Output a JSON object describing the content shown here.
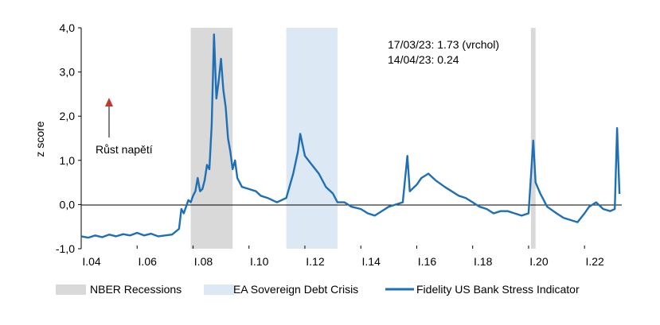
{
  "chart_data": {
    "type": "line",
    "title": "",
    "xlabel": "",
    "ylabel": "z score",
    "ylim": [
      -1.0,
      4.0
    ],
    "xlim": [
      "2004-01",
      "2023-05"
    ],
    "y_ticks": [
      "-1,0",
      "0,0",
      "1,0",
      "2,0",
      "3,0",
      "4,0"
    ],
    "x_ticks": [
      "I.04",
      "I.06",
      "I.08",
      "I.10",
      "I.12",
      "I.14",
      "I.16",
      "I.18",
      "I.20",
      "I.22"
    ],
    "grid": false,
    "legend_position": "bottom",
    "annotations": {
      "line1": "17/03/23:  1.73  (vrchol)",
      "line2": "14/04/23:  0.24",
      "arrow_label": "Růst  napětí"
    },
    "shaded_periods": [
      {
        "name": "NBER Recessions",
        "color": "#d9d9d9",
        "ranges": [
          [
            "2007-12",
            "2009-06"
          ],
          [
            "2020-02",
            "2020-04"
          ]
        ]
      },
      {
        "name": "EA Sovereign Debt Crisis",
        "color": "#dce9f5",
        "ranges": [
          [
            "2011-05",
            "2013-03"
          ]
        ]
      }
    ],
    "series": [
      {
        "name": "Fidelity US Bank Stress Indicator",
        "color": "#1f6fb4",
        "points": [
          [
            "2004-01",
            -0.72
          ],
          [
            "2004-04",
            -0.75
          ],
          [
            "2004-07",
            -0.7
          ],
          [
            "2004-10",
            -0.74
          ],
          [
            "2005-01",
            -0.68
          ],
          [
            "2005-04",
            -0.72
          ],
          [
            "2005-07",
            -0.67
          ],
          [
            "2005-10",
            -0.7
          ],
          [
            "2006-01",
            -0.64
          ],
          [
            "2006-04",
            -0.7
          ],
          [
            "2006-07",
            -0.66
          ],
          [
            "2006-10",
            -0.72
          ],
          [
            "2007-01",
            -0.7
          ],
          [
            "2007-04",
            -0.68
          ],
          [
            "2007-07",
            -0.55
          ],
          [
            "2007-08",
            -0.1
          ],
          [
            "2007-09",
            -0.2
          ],
          [
            "2007-10",
            -0.05
          ],
          [
            "2007-11",
            0.1
          ],
          [
            "2007-12",
            0.05
          ],
          [
            "2008-01",
            0.2
          ],
          [
            "2008-02",
            0.3
          ],
          [
            "2008-03",
            0.6
          ],
          [
            "2008-04",
            0.3
          ],
          [
            "2008-05",
            0.35
          ],
          [
            "2008-06",
            0.55
          ],
          [
            "2008-07",
            0.9
          ],
          [
            "2008-08",
            0.8
          ],
          [
            "2008-09",
            1.8
          ],
          [
            "2008-10",
            3.85
          ],
          [
            "2008-11",
            2.4
          ],
          [
            "2008-12",
            2.8
          ],
          [
            "2009-01",
            3.3
          ],
          [
            "2009-02",
            2.6
          ],
          [
            "2009-03",
            2.2
          ],
          [
            "2009-04",
            1.5
          ],
          [
            "2009-05",
            1.2
          ],
          [
            "2009-06",
            0.8
          ],
          [
            "2009-07",
            1.0
          ],
          [
            "2009-08",
            0.6
          ],
          [
            "2009-09",
            0.5
          ],
          [
            "2009-10",
            0.4
          ],
          [
            "2010-01",
            0.35
          ],
          [
            "2010-04",
            0.3
          ],
          [
            "2010-06",
            0.2
          ],
          [
            "2010-09",
            0.15
          ],
          [
            "2011-01",
            0.05
          ],
          [
            "2011-05",
            0.15
          ],
          [
            "2011-08",
            0.7
          ],
          [
            "2011-10",
            1.2
          ],
          [
            "2011-11",
            1.6
          ],
          [
            "2012-01",
            1.1
          ],
          [
            "2012-04",
            0.9
          ],
          [
            "2012-07",
            0.7
          ],
          [
            "2012-10",
            0.4
          ],
          [
            "2013-01",
            0.25
          ],
          [
            "2013-03",
            0.05
          ],
          [
            "2013-06",
            0.05
          ],
          [
            "2013-09",
            -0.05
          ],
          [
            "2014-01",
            -0.1
          ],
          [
            "2014-04",
            -0.2
          ],
          [
            "2014-07",
            -0.25
          ],
          [
            "2014-10",
            -0.15
          ],
          [
            "2015-01",
            -0.05
          ],
          [
            "2015-04",
            0.0
          ],
          [
            "2015-07",
            0.05
          ],
          [
            "2015-09",
            1.1
          ],
          [
            "2015-10",
            0.3
          ],
          [
            "2016-01",
            0.45
          ],
          [
            "2016-03",
            0.6
          ],
          [
            "2016-06",
            0.7
          ],
          [
            "2016-09",
            0.55
          ],
          [
            "2017-01",
            0.4
          ],
          [
            "2017-04",
            0.3
          ],
          [
            "2017-07",
            0.2
          ],
          [
            "2017-10",
            0.15
          ],
          [
            "2018-01",
            0.05
          ],
          [
            "2018-04",
            -0.05
          ],
          [
            "2018-07",
            -0.1
          ],
          [
            "2018-10",
            -0.2
          ],
          [
            "2019-01",
            -0.15
          ],
          [
            "2019-04",
            -0.15
          ],
          [
            "2019-07",
            -0.2
          ],
          [
            "2019-10",
            -0.25
          ],
          [
            "2020-01",
            -0.2
          ],
          [
            "2020-03",
            1.45
          ],
          [
            "2020-04",
            0.5
          ],
          [
            "2020-06",
            0.25
          ],
          [
            "2020-09",
            -0.05
          ],
          [
            "2021-01",
            -0.2
          ],
          [
            "2021-04",
            -0.3
          ],
          [
            "2021-07",
            -0.35
          ],
          [
            "2021-10",
            -0.4
          ],
          [
            "2022-01",
            -0.2
          ],
          [
            "2022-03",
            -0.05
          ],
          [
            "2022-06",
            0.05
          ],
          [
            "2022-09",
            -0.1
          ],
          [
            "2022-12",
            -0.15
          ],
          [
            "2023-02",
            -0.1
          ],
          [
            "2023-03",
            1.73
          ],
          [
            "2023-04",
            0.24
          ]
        ]
      }
    ],
    "legend": [
      "NBER Recessions",
      "EA Sovereign Debt Crisis",
      "Fidelity US Bank Stress Indicator"
    ]
  }
}
